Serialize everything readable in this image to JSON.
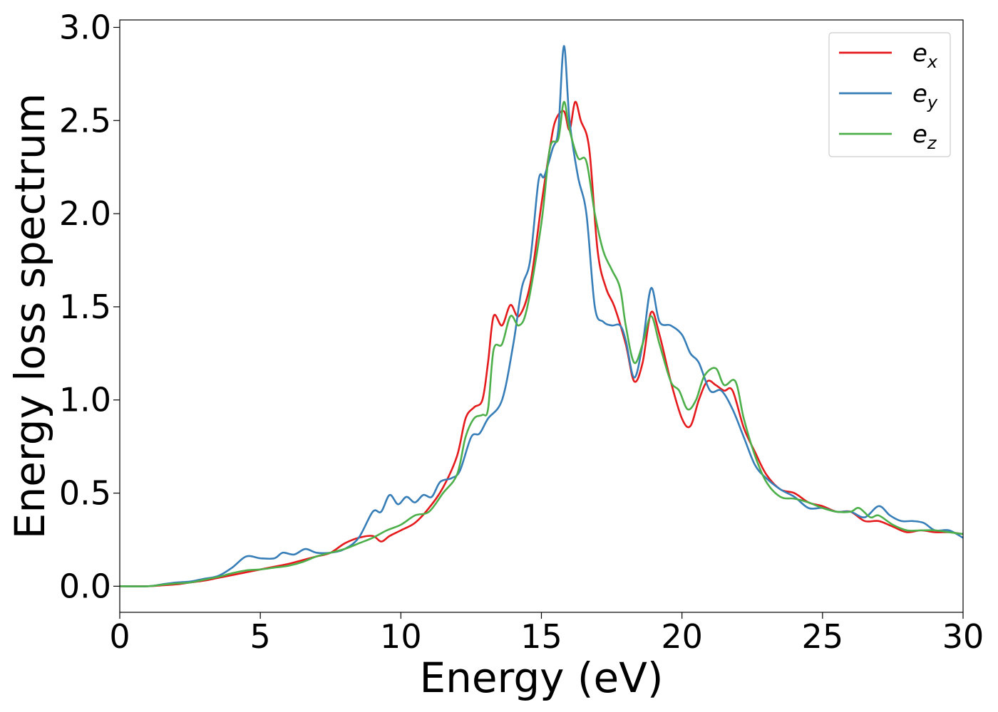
{
  "chart_data": {
    "type": "line",
    "title": "",
    "xlabel": "Energy (eV)",
    "ylabel": "Energy loss spectrum",
    "xlim": [
      0,
      30
    ],
    "ylim": [
      -0.14,
      3.04
    ],
    "xticks": [
      0,
      5,
      10,
      15,
      20,
      25,
      30
    ],
    "xtick_labels": [
      "0",
      "5",
      "10",
      "15",
      "20",
      "25",
      "30"
    ],
    "yticks": [
      0.0,
      0.5,
      1.0,
      1.5,
      2.0,
      2.5,
      3.0
    ],
    "ytick_labels": [
      "0.0",
      "0.5",
      "1.0",
      "1.5",
      "2.0",
      "2.5",
      "3.0"
    ],
    "grid": false,
    "legend": "top-right",
    "series": [
      {
        "name": "e_x",
        "label_main": "e",
        "label_sub": "x",
        "color": "#e41a1c",
        "points": [
          [
            0,
            0.0
          ],
          [
            1,
            0.0
          ],
          [
            1.5,
            0.005
          ],
          [
            2,
            0.01
          ],
          [
            2.5,
            0.02
          ],
          [
            3,
            0.03
          ],
          [
            3.5,
            0.045
          ],
          [
            4,
            0.06
          ],
          [
            4.5,
            0.075
          ],
          [
            5,
            0.09
          ],
          [
            5.5,
            0.105
          ],
          [
            6,
            0.12
          ],
          [
            6.5,
            0.14
          ],
          [
            7,
            0.16
          ],
          [
            7.5,
            0.18
          ],
          [
            8,
            0.23
          ],
          [
            8.5,
            0.26
          ],
          [
            9,
            0.27
          ],
          [
            9.3,
            0.24
          ],
          [
            9.6,
            0.27
          ],
          [
            10,
            0.3
          ],
          [
            10.5,
            0.34
          ],
          [
            11,
            0.42
          ],
          [
            11.5,
            0.53
          ],
          [
            12,
            0.7
          ],
          [
            12.3,
            0.9
          ],
          [
            12.6,
            0.96
          ],
          [
            12.9,
            1.0
          ],
          [
            13.1,
            1.2
          ],
          [
            13.3,
            1.45
          ],
          [
            13.6,
            1.4
          ],
          [
            13.9,
            1.51
          ],
          [
            14.2,
            1.45
          ],
          [
            14.6,
            1.62
          ],
          [
            15.0,
            2.05
          ],
          [
            15.3,
            2.35
          ],
          [
            15.5,
            2.5
          ],
          [
            15.8,
            2.55
          ],
          [
            16.0,
            2.45
          ],
          [
            16.2,
            2.6
          ],
          [
            16.4,
            2.5
          ],
          [
            16.7,
            2.35
          ],
          [
            17.0,
            1.8
          ],
          [
            17.3,
            1.6
          ],
          [
            17.6,
            1.5
          ],
          [
            18.0,
            1.3
          ],
          [
            18.3,
            1.1
          ],
          [
            18.6,
            1.2
          ],
          [
            18.9,
            1.47
          ],
          [
            19.2,
            1.35
          ],
          [
            19.6,
            1.1
          ],
          [
            20.0,
            0.9
          ],
          [
            20.3,
            0.86
          ],
          [
            20.6,
            1.0
          ],
          [
            20.9,
            1.1
          ],
          [
            21.2,
            1.08
          ],
          [
            21.5,
            1.05
          ],
          [
            21.8,
            1.05
          ],
          [
            22.2,
            0.85
          ],
          [
            22.6,
            0.72
          ],
          [
            23.0,
            0.6
          ],
          [
            23.5,
            0.52
          ],
          [
            24.0,
            0.5
          ],
          [
            24.5,
            0.45
          ],
          [
            25.0,
            0.43
          ],
          [
            25.5,
            0.4
          ],
          [
            26.0,
            0.4
          ],
          [
            26.5,
            0.35
          ],
          [
            27.0,
            0.35
          ],
          [
            27.5,
            0.32
          ],
          [
            28.0,
            0.29
          ],
          [
            28.5,
            0.3
          ],
          [
            29.0,
            0.29
          ],
          [
            29.5,
            0.29
          ],
          [
            30.0,
            0.28
          ]
        ]
      },
      {
        "name": "e_y",
        "label_main": "e",
        "label_sub": "y",
        "color": "#377eb8",
        "points": [
          [
            0,
            0.0
          ],
          [
            1,
            0.0
          ],
          [
            1.5,
            0.01
          ],
          [
            2,
            0.02
          ],
          [
            2.5,
            0.025
          ],
          [
            3,
            0.04
          ],
          [
            3.5,
            0.055
          ],
          [
            4,
            0.1
          ],
          [
            4.5,
            0.16
          ],
          [
            5,
            0.15
          ],
          [
            5.5,
            0.15
          ],
          [
            5.8,
            0.18
          ],
          [
            6.2,
            0.17
          ],
          [
            6.6,
            0.2
          ],
          [
            7,
            0.18
          ],
          [
            7.5,
            0.18
          ],
          [
            8,
            0.2
          ],
          [
            8.5,
            0.26
          ],
          [
            9,
            0.4
          ],
          [
            9.3,
            0.4
          ],
          [
            9.6,
            0.49
          ],
          [
            9.9,
            0.44
          ],
          [
            10.2,
            0.48
          ],
          [
            10.5,
            0.45
          ],
          [
            10.8,
            0.49
          ],
          [
            11.1,
            0.48
          ],
          [
            11.4,
            0.56
          ],
          [
            11.8,
            0.58
          ],
          [
            12.1,
            0.62
          ],
          [
            12.5,
            0.8
          ],
          [
            12.8,
            0.82
          ],
          [
            13.1,
            0.9
          ],
          [
            13.6,
            1.0
          ],
          [
            14.0,
            1.3
          ],
          [
            14.3,
            1.6
          ],
          [
            14.6,
            1.75
          ],
          [
            14.9,
            2.18
          ],
          [
            15.1,
            2.2
          ],
          [
            15.4,
            2.35
          ],
          [
            15.6,
            2.45
          ],
          [
            15.8,
            2.9
          ],
          [
            16.0,
            2.5
          ],
          [
            16.3,
            2.2
          ],
          [
            16.6,
            2.0
          ],
          [
            16.9,
            1.5
          ],
          [
            17.2,
            1.42
          ],
          [
            17.5,
            1.4
          ],
          [
            17.8,
            1.4
          ],
          [
            18.0,
            1.32
          ],
          [
            18.3,
            1.12
          ],
          [
            18.6,
            1.3
          ],
          [
            18.9,
            1.6
          ],
          [
            19.2,
            1.42
          ],
          [
            19.6,
            1.4
          ],
          [
            20.0,
            1.35
          ],
          [
            20.3,
            1.25
          ],
          [
            20.6,
            1.2
          ],
          [
            21.0,
            1.05
          ],
          [
            21.4,
            1.05
          ],
          [
            21.8,
            0.95
          ],
          [
            22.2,
            0.8
          ],
          [
            22.6,
            0.65
          ],
          [
            23.0,
            0.58
          ],
          [
            23.5,
            0.52
          ],
          [
            24.0,
            0.48
          ],
          [
            24.5,
            0.42
          ],
          [
            25.0,
            0.42
          ],
          [
            25.5,
            0.4
          ],
          [
            26.0,
            0.4
          ],
          [
            26.5,
            0.37
          ],
          [
            27.0,
            0.43
          ],
          [
            27.4,
            0.38
          ],
          [
            27.8,
            0.35
          ],
          [
            28.2,
            0.35
          ],
          [
            28.6,
            0.34
          ],
          [
            29.0,
            0.3
          ],
          [
            29.5,
            0.3
          ],
          [
            30.0,
            0.26
          ]
        ]
      },
      {
        "name": "e_z",
        "label_main": "e",
        "label_sub": "z",
        "color": "#4daf4a",
        "points": [
          [
            0,
            0.0
          ],
          [
            1,
            0.0
          ],
          [
            1.5,
            0.008
          ],
          [
            2,
            0.015
          ],
          [
            2.5,
            0.02
          ],
          [
            3,
            0.035
          ],
          [
            3.5,
            0.05
          ],
          [
            4,
            0.07
          ],
          [
            4.5,
            0.085
          ],
          [
            5,
            0.09
          ],
          [
            5.5,
            0.1
          ],
          [
            6,
            0.11
          ],
          [
            6.5,
            0.13
          ],
          [
            7,
            0.16
          ],
          [
            7.5,
            0.18
          ],
          [
            8,
            0.2
          ],
          [
            8.5,
            0.23
          ],
          [
            9,
            0.26
          ],
          [
            9.5,
            0.3
          ],
          [
            10,
            0.33
          ],
          [
            10.5,
            0.38
          ],
          [
            11,
            0.4
          ],
          [
            11.5,
            0.5
          ],
          [
            12,
            0.6
          ],
          [
            12.3,
            0.8
          ],
          [
            12.6,
            0.9
          ],
          [
            12.9,
            0.92
          ],
          [
            13.1,
            0.95
          ],
          [
            13.3,
            1.27
          ],
          [
            13.6,
            1.3
          ],
          [
            13.9,
            1.45
          ],
          [
            14.2,
            1.4
          ],
          [
            14.5,
            1.5
          ],
          [
            15.0,
            1.95
          ],
          [
            15.3,
            2.35
          ],
          [
            15.6,
            2.4
          ],
          [
            15.8,
            2.6
          ],
          [
            16.0,
            2.45
          ],
          [
            16.3,
            2.3
          ],
          [
            16.6,
            2.28
          ],
          [
            16.9,
            2.0
          ],
          [
            17.2,
            1.8
          ],
          [
            17.5,
            1.7
          ],
          [
            17.8,
            1.6
          ],
          [
            18.0,
            1.4
          ],
          [
            18.3,
            1.2
          ],
          [
            18.6,
            1.3
          ],
          [
            18.9,
            1.45
          ],
          [
            19.2,
            1.3
          ],
          [
            19.6,
            1.1
          ],
          [
            19.9,
            1.05
          ],
          [
            20.2,
            0.95
          ],
          [
            20.5,
            1.0
          ],
          [
            20.8,
            1.13
          ],
          [
            21.2,
            1.17
          ],
          [
            21.5,
            1.08
          ],
          [
            21.9,
            1.1
          ],
          [
            22.2,
            0.9
          ],
          [
            22.6,
            0.7
          ],
          [
            23.0,
            0.56
          ],
          [
            23.5,
            0.48
          ],
          [
            24.0,
            0.47
          ],
          [
            24.5,
            0.45
          ],
          [
            25.0,
            0.42
          ],
          [
            25.5,
            0.4
          ],
          [
            26.0,
            0.4
          ],
          [
            26.3,
            0.42
          ],
          [
            26.7,
            0.37
          ],
          [
            27.0,
            0.38
          ],
          [
            27.5,
            0.33
          ],
          [
            28.0,
            0.3
          ],
          [
            28.5,
            0.3
          ],
          [
            29.0,
            0.3
          ],
          [
            29.5,
            0.29
          ],
          [
            30.0,
            0.28
          ]
        ]
      }
    ]
  }
}
